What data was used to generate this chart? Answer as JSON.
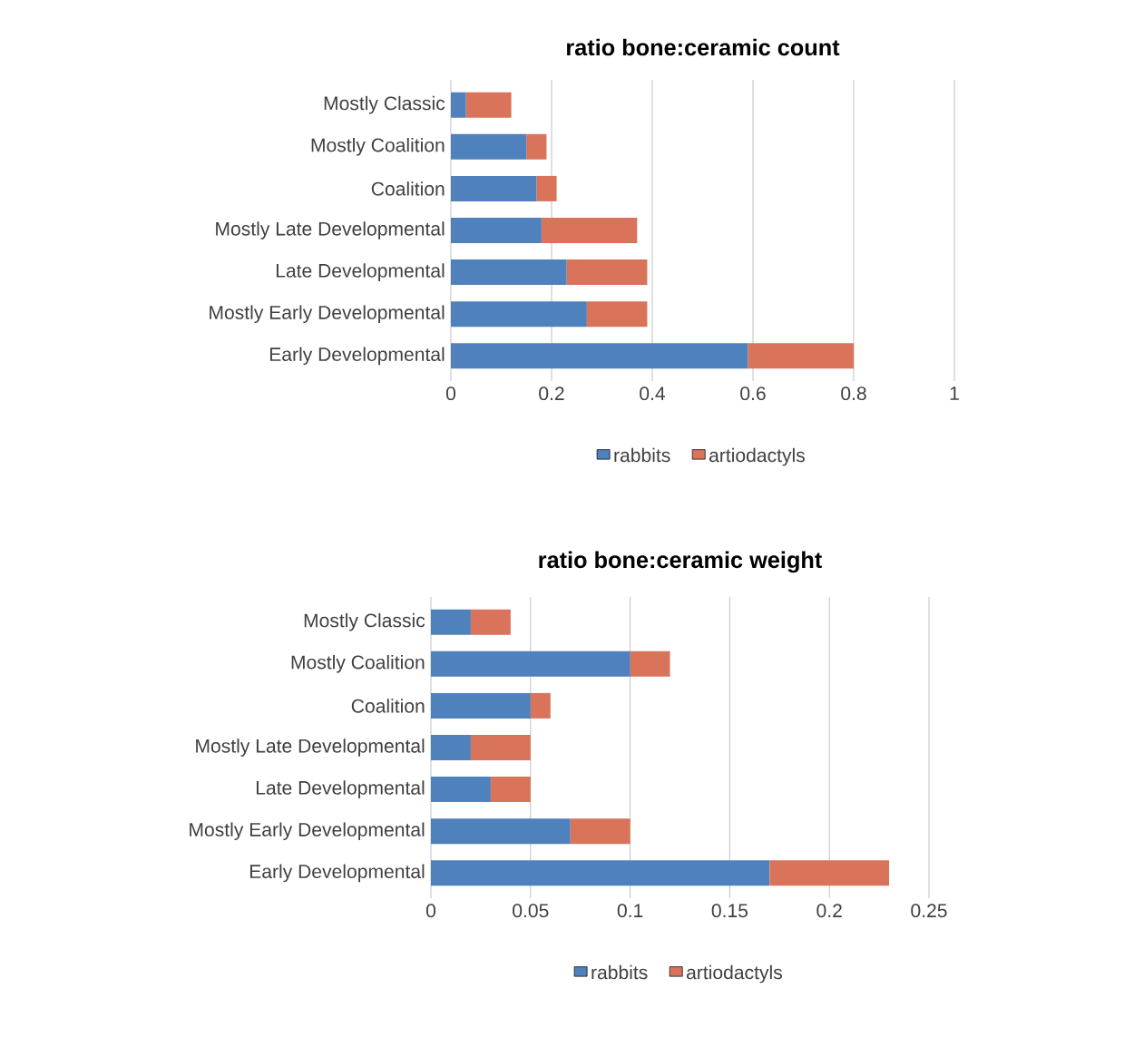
{
  "chart_data": [
    {
      "type": "bar",
      "orientation": "horizontal",
      "stacked": true,
      "title": "ratio bone:ceramic count",
      "categories": [
        "Mostly Classic",
        "Mostly Coalition",
        "Coalition",
        "Mostly Late Developmental",
        "Late Developmental",
        "Mostly Early Developmental",
        "Early Developmental"
      ],
      "series": [
        {
          "name": "rabbits",
          "color": "#4f81bd",
          "values": [
            0.03,
            0.15,
            0.17,
            0.18,
            0.23,
            0.27,
            0.59
          ]
        },
        {
          "name": "artiodactyls",
          "color": "#d9735a",
          "values": [
            0.09,
            0.04,
            0.04,
            0.19,
            0.16,
            0.12,
            0.21
          ]
        }
      ],
      "xlim": [
        0,
        1
      ],
      "xticks": [
        0,
        0.2,
        0.4,
        0.6,
        0.8,
        1
      ],
      "grid": "x",
      "legend": "bottom"
    },
    {
      "type": "bar",
      "orientation": "horizontal",
      "stacked": true,
      "title": "ratio bone:ceramic weight",
      "categories": [
        "Mostly Classic",
        "Mostly Coalition",
        "Coalition",
        "Mostly Late Developmental",
        "Late Developmental",
        "Mostly Early Developmental",
        "Early Developmental"
      ],
      "series": [
        {
          "name": "rabbits",
          "color": "#4f81bd",
          "values": [
            0.02,
            0.1,
            0.05,
            0.02,
            0.03,
            0.07,
            0.17
          ]
        },
        {
          "name": "artiodactyls",
          "color": "#d9735a",
          "values": [
            0.02,
            0.02,
            0.01,
            0.03,
            0.02,
            0.03,
            0.06
          ]
        }
      ],
      "xlim": [
        0,
        0.25
      ],
      "xticks": [
        0,
        0.05,
        0.1,
        0.15,
        0.2,
        0.25
      ],
      "grid": "x",
      "legend": "bottom"
    }
  ]
}
